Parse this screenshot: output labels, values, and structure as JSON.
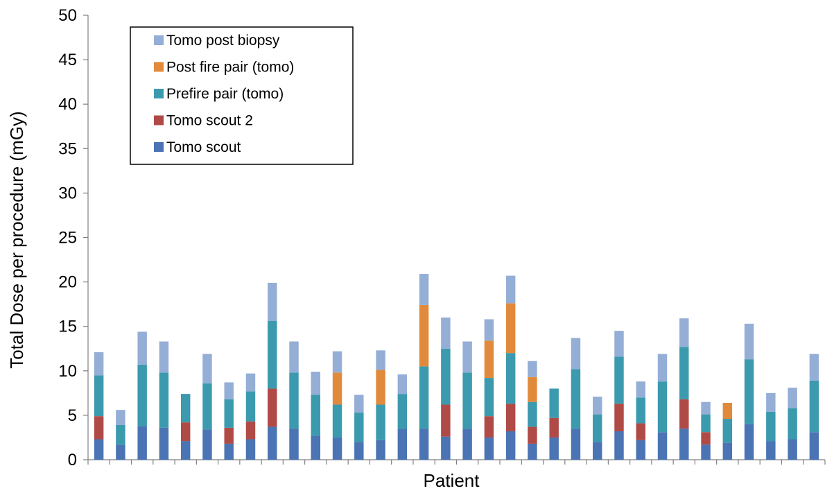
{
  "chart_data": {
    "type": "bar",
    "stacked": true,
    "xlabel": "Patient",
    "ylabel": "Total Dose per procedure (mGy)",
    "ylim": [
      0,
      50
    ],
    "yticks": [
      0,
      5,
      10,
      15,
      20,
      25,
      30,
      35,
      40,
      45,
      50
    ],
    "grid": false,
    "legend_position": "top-left",
    "patients": 34,
    "series": [
      {
        "name": "Tomo scout",
        "color": "#4a74b3",
        "values": [
          2.3,
          1.7,
          3.8,
          3.6,
          2.1,
          3.4,
          1.8,
          2.3,
          3.7,
          3.5,
          2.7,
          2.5,
          2.0,
          2.2,
          3.5,
          3.5,
          2.6,
          3.5,
          2.5,
          3.2,
          1.8,
          2.5,
          3.5,
          2.0,
          3.2,
          2.2,
          3.1,
          3.5,
          1.7,
          1.9,
          4.0,
          2.1,
          2.3,
          3.1
        ]
      },
      {
        "name": "Tomo scout 2",
        "color": "#b04a46",
        "values": [
          2.6,
          0,
          0,
          0,
          2.1,
          0,
          1.8,
          2.0,
          4.3,
          0,
          0,
          0,
          0,
          0,
          0,
          0,
          3.6,
          0,
          2.4,
          3.1,
          1.9,
          2.2,
          0,
          0,
          3.1,
          1.9,
          0,
          3.3,
          1.4,
          0,
          0,
          0,
          0,
          0
        ]
      },
      {
        "name": "Prefire pair (tomo)",
        "color": "#3b9aae",
        "values": [
          4.6,
          2.2,
          6.9,
          6.2,
          3.2,
          5.2,
          3.2,
          3.4,
          7.6,
          6.3,
          4.6,
          3.7,
          3.3,
          4.0,
          3.9,
          7.0,
          6.3,
          6.3,
          4.3,
          5.7,
          2.8,
          3.3,
          6.7,
          3.1,
          5.3,
          2.9,
          5.7,
          5.9,
          2.0,
          2.7,
          7.3,
          3.3,
          3.5,
          5.8
        ]
      },
      {
        "name": "Post fire pair (tomo)",
        "color": "#e28a3c",
        "values": [
          0,
          0,
          0,
          0,
          0,
          0,
          0,
          0,
          0,
          0,
          0,
          3.6,
          0,
          3.9,
          0,
          6.9,
          0,
          0,
          4.2,
          5.6,
          2.8,
          0,
          0,
          0,
          0,
          0,
          0,
          0,
          0,
          1.8,
          0,
          0,
          0,
          0
        ]
      },
      {
        "name": "Tomo post biopsy",
        "color": "#94aed6",
        "values": [
          2.6,
          1.7,
          3.7,
          3.5,
          0,
          3.3,
          1.9,
          2.0,
          4.3,
          3.5,
          2.6,
          2.4,
          2.0,
          2.2,
          2.2,
          3.5,
          3.5,
          3.5,
          2.4,
          3.1,
          1.8,
          0,
          3.5,
          2.0,
          2.9,
          1.8,
          3.1,
          3.2,
          1.4,
          0,
          4.0,
          2.1,
          2.3,
          3.0
        ]
      }
    ],
    "legend_order": [
      "Tomo post biopsy",
      "Post fire pair (tomo)",
      "Prefire pair (tomo)",
      "Tomo scout 2",
      "Tomo scout"
    ]
  }
}
